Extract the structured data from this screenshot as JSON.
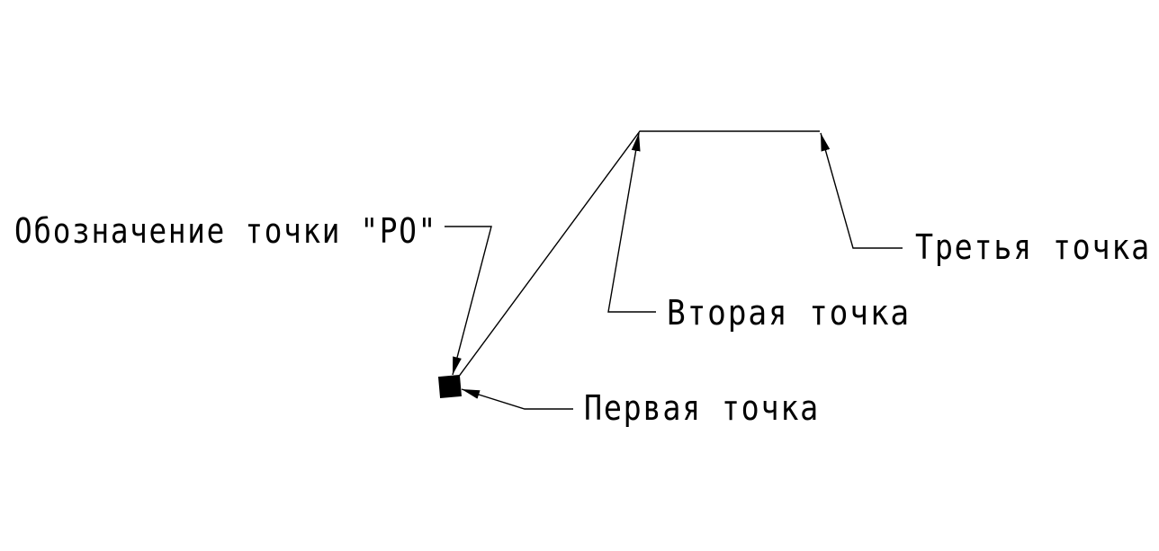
{
  "labels": {
    "po_designation": "Обозначение точки \"PO\"",
    "first_point": "Первая точка",
    "second_point": "Вторая точка",
    "third_point": "Третья точка"
  },
  "colors": {
    "ink": "#000000",
    "background": "#ffffff"
  },
  "icons": {
    "po_marker": "filled-square-marker"
  }
}
